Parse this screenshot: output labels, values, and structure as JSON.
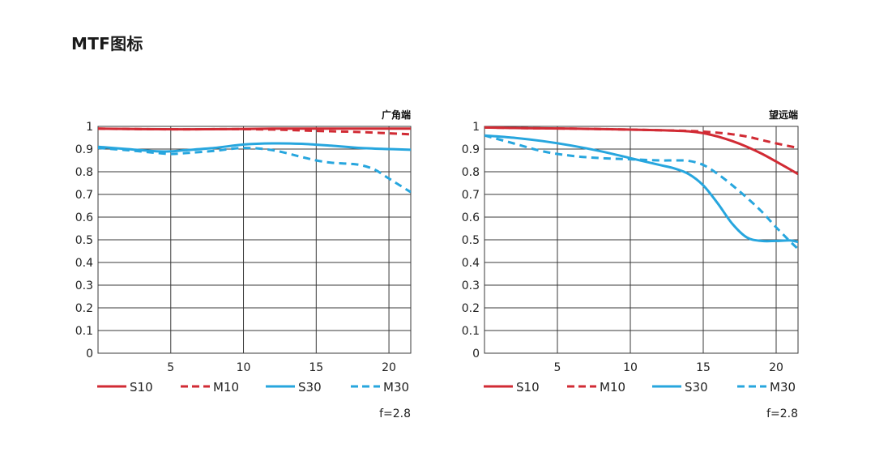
{
  "page": {
    "title": "MTF图标"
  },
  "colors": {
    "s10": "#d12b34",
    "m10": "#d12b34",
    "s30": "#27a6de",
    "m30": "#27a6de",
    "grid": "#3a3a3a"
  },
  "chart_data": [
    {
      "type": "line",
      "corner_label": "广角端",
      "aperture_label": "f=2.8",
      "xlim": [
        0,
        21.5
      ],
      "ylim": [
        0,
        1
      ],
      "x_ticks": [
        5,
        10,
        15,
        20
      ],
      "y_ticks": [
        0,
        0.1,
        0.2,
        0.3,
        0.4,
        0.5,
        0.6,
        0.7,
        0.8,
        0.9,
        1
      ],
      "y_tick_labels": [
        "0",
        "0.1",
        "0.2",
        "0.3",
        "0.4",
        "0.5",
        "0.6",
        "0.7",
        "0.8",
        "0.9",
        "1"
      ],
      "series": [
        {
          "name": "S10",
          "style": "solid",
          "color": "#d12b34",
          "x": [
            0,
            3,
            6,
            9,
            12,
            15,
            18,
            21.5
          ],
          "y": [
            0.99,
            0.988,
            0.987,
            0.988,
            0.99,
            0.99,
            0.99,
            0.99
          ]
        },
        {
          "name": "M10",
          "style": "dashed",
          "color": "#d12b34",
          "x": [
            0,
            3,
            6,
            9,
            12,
            15,
            18,
            21.5
          ],
          "y": [
            0.99,
            0.988,
            0.987,
            0.988,
            0.986,
            0.98,
            0.975,
            0.965
          ]
        },
        {
          "name": "S30",
          "style": "solid",
          "color": "#27a6de",
          "x": [
            0,
            2,
            4,
            5,
            6,
            8,
            10,
            12,
            14,
            16,
            18,
            20,
            21.5
          ],
          "y": [
            0.91,
            0.9,
            0.89,
            0.89,
            0.895,
            0.905,
            0.92,
            0.925,
            0.923,
            0.915,
            0.905,
            0.9,
            0.897
          ]
        },
        {
          "name": "M30",
          "style": "dashed",
          "color": "#27a6de",
          "x": [
            0,
            2,
            4,
            5,
            6,
            8,
            10,
            12,
            14,
            15,
            16,
            17,
            18,
            19,
            20,
            21.5
          ],
          "y": [
            0.905,
            0.895,
            0.883,
            0.878,
            0.882,
            0.892,
            0.905,
            0.895,
            0.865,
            0.85,
            0.84,
            0.836,
            0.83,
            0.81,
            0.77,
            0.71
          ]
        }
      ]
    },
    {
      "type": "line",
      "corner_label": "望远端",
      "aperture_label": "f=2.8",
      "xlim": [
        0,
        21.5
      ],
      "ylim": [
        0,
        1
      ],
      "x_ticks": [
        5,
        10,
        15,
        20
      ],
      "y_ticks": [
        0,
        0.1,
        0.2,
        0.3,
        0.4,
        0.5,
        0.6,
        0.7,
        0.8,
        0.9,
        1
      ],
      "y_tick_labels": [
        "0",
        "0.1",
        "0.2",
        "0.3",
        "0.4",
        "0.5",
        "0.6",
        "0.7",
        "0.8",
        "0.9",
        "1"
      ],
      "series": [
        {
          "name": "S10",
          "style": "solid",
          "color": "#d12b34",
          "x": [
            0,
            3,
            6,
            9,
            12,
            14,
            15,
            16,
            17,
            18,
            19,
            20,
            21.5
          ],
          "y": [
            0.995,
            0.992,
            0.99,
            0.987,
            0.983,
            0.978,
            0.97,
            0.955,
            0.935,
            0.91,
            0.88,
            0.845,
            0.79
          ]
        },
        {
          "name": "M10",
          "style": "dashed",
          "color": "#d12b34",
          "x": [
            0,
            3,
            6,
            9,
            12,
            14,
            15,
            16,
            17,
            18,
            19,
            20,
            21.5
          ],
          "y": [
            0.995,
            0.992,
            0.99,
            0.987,
            0.983,
            0.98,
            0.977,
            0.972,
            0.965,
            0.955,
            0.94,
            0.925,
            0.905
          ]
        },
        {
          "name": "S30",
          "style": "solid",
          "color": "#27a6de",
          "x": [
            0,
            2,
            4,
            6,
            8,
            10,
            12,
            13,
            14,
            15,
            16,
            17,
            18,
            19,
            20,
            21,
            21.5
          ],
          "y": [
            0.96,
            0.95,
            0.935,
            0.915,
            0.89,
            0.86,
            0.83,
            0.815,
            0.79,
            0.74,
            0.66,
            0.57,
            0.51,
            0.495,
            0.495,
            0.497,
            0.49
          ]
        },
        {
          "name": "M30",
          "style": "dashed",
          "color": "#27a6de",
          "x": [
            0,
            2,
            4,
            6,
            8,
            10,
            12,
            13,
            14,
            15,
            16,
            17,
            18,
            19,
            20,
            21,
            21.5
          ],
          "y": [
            0.96,
            0.925,
            0.89,
            0.87,
            0.86,
            0.855,
            0.85,
            0.85,
            0.848,
            0.83,
            0.79,
            0.74,
            0.685,
            0.625,
            0.555,
            0.49,
            0.46
          ]
        }
      ]
    }
  ]
}
